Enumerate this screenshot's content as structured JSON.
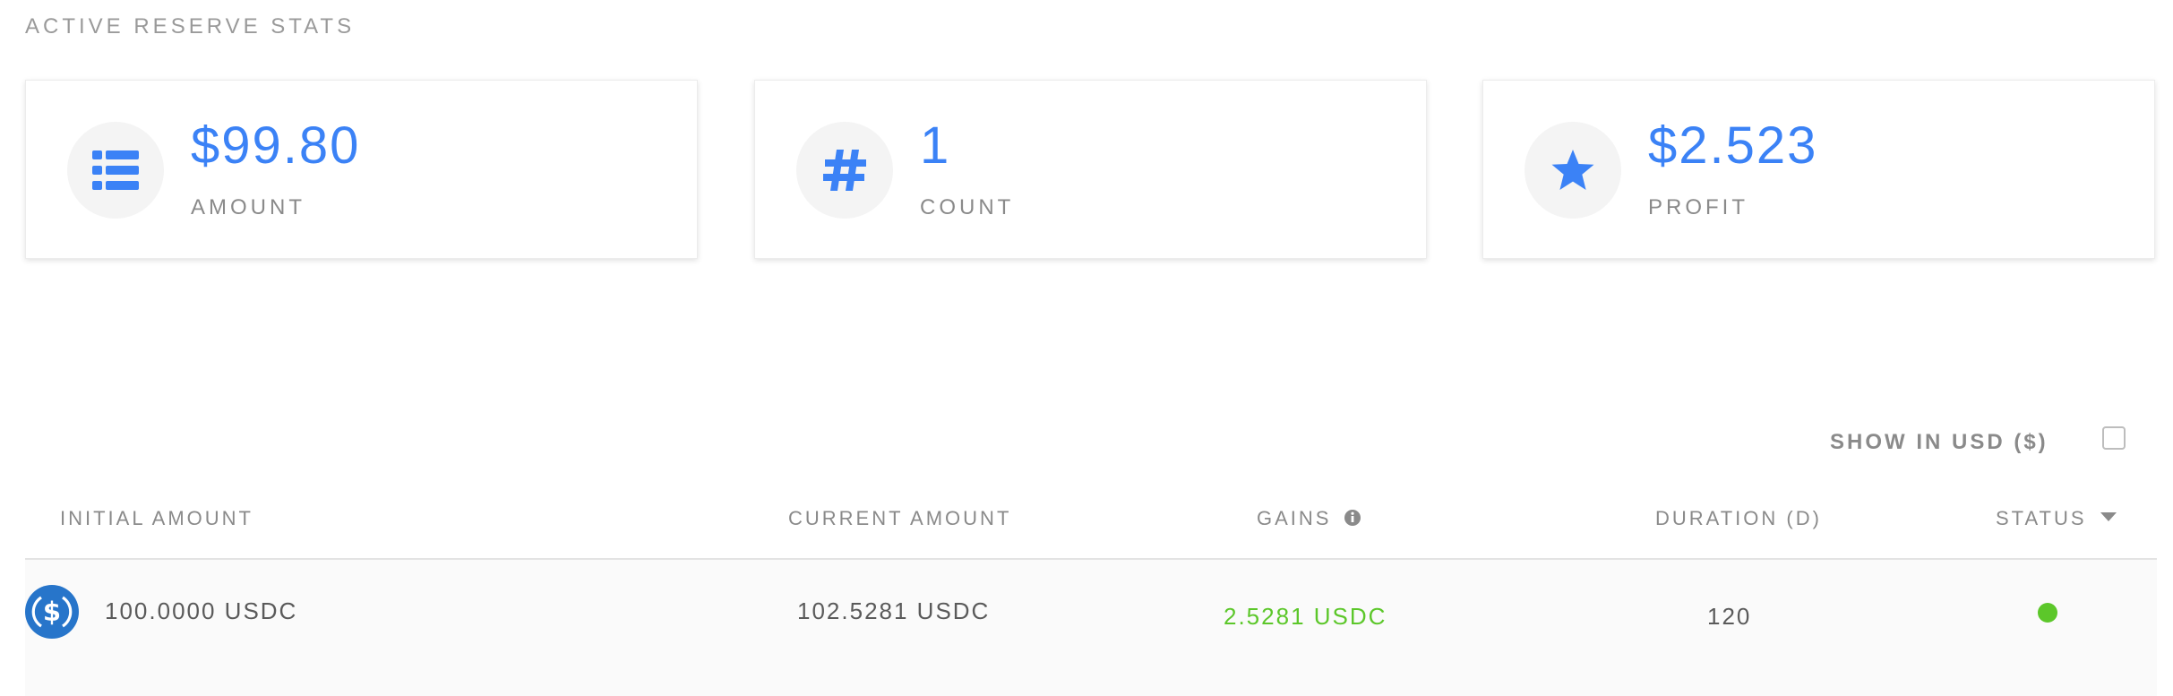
{
  "section_title": "ACTIVE RESERVE STATS",
  "cards": [
    {
      "value": "$99.80",
      "label": "AMOUNT",
      "icon": "list-icon"
    },
    {
      "value": "1",
      "label": "COUNT",
      "icon": "hash-icon"
    },
    {
      "value": "$2.523",
      "label": "PROFIT",
      "icon": "star-icon"
    }
  ],
  "usd_toggle": {
    "label": "SHOW IN USD ($)",
    "checked": false
  },
  "table": {
    "headers": {
      "initial_amount": "INITIAL AMOUNT",
      "current_amount": "CURRENT AMOUNT",
      "gains": "GAINS",
      "duration": "DURATION (D)",
      "status": "STATUS"
    },
    "rows": [
      {
        "token_icon": "usdc-icon",
        "initial_amount": "100.0000 USDC",
        "current_amount": "102.5281 USDC",
        "gains": "2.5281 USDC",
        "duration": "120",
        "status": "active"
      }
    ]
  },
  "colors": {
    "accent": "#3b82f6",
    "positive": "#5cc72a",
    "muted_text": "#8a8a8a",
    "usdc_blue": "#2775ca"
  }
}
